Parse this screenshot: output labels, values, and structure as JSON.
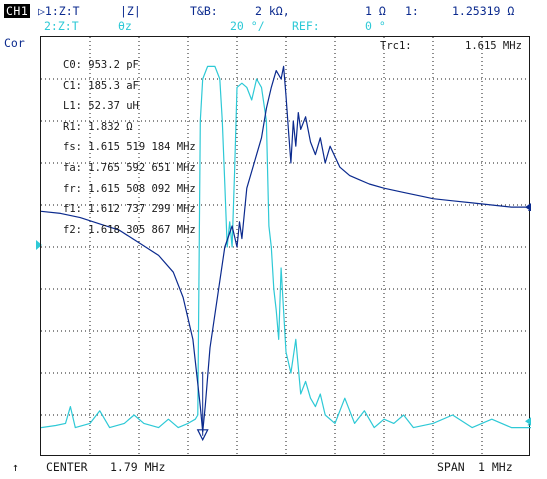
{
  "header": {
    "channel": "CH1",
    "trace1": {
      "label": "▷1:Z:T",
      "format": "|Z|",
      "scale_label": "T&B:",
      "scale_value": "2 kΩ,",
      "ref_value": "1 Ω",
      "marker_label": "1:",
      "marker_value": "1.25319 Ω"
    },
    "trace2": {
      "label": "2:Z:T",
      "format": "θz",
      "scale_value": "20 °/",
      "ref_label": "REF:",
      "ref_value": "0 °"
    }
  },
  "side_label": "Cor",
  "plot": {
    "trace_label": "Trc1:",
    "trace_freq": "1.615 MHz",
    "params": [
      {
        "name": "C0:",
        "value": "953.2 pF"
      },
      {
        "name": "C1:",
        "value": "185.3 aF"
      },
      {
        "name": "L1:",
        "value": "52.37 uH"
      },
      {
        "name": "R1:",
        "value": "1.832 Ω"
      },
      {
        "name": "fs:",
        "value": "1.615 519 184 MHz"
      },
      {
        "name": "fa:",
        "value": "1.765 592 651 MHz"
      },
      {
        "name": "fr:",
        "value": "1.615 508 092 MHz"
      },
      {
        "name": "f1:",
        "value": "1.612 737 299 MHz"
      },
      {
        "name": "f2:",
        "value": "1.618 305 867 MHz"
      }
    ],
    "ref_marker_1": "1",
    "ref_marker_2": "2"
  },
  "footer": {
    "marker_arrow": "↑",
    "center_label": "CENTER",
    "center_value": "1.79 MHz",
    "span_label": "SPAN",
    "span_value": "1 MHz"
  },
  "colors": {
    "trace1": "#0b2a8e",
    "trace2": "#2ec9d6",
    "grid": "#1a1a1a"
  },
  "chart_data": {
    "type": "line",
    "x_center": "1.79 MHz",
    "x_span": "1 MHz",
    "grid": true,
    "series": [
      {
        "name": "|Z|",
        "color": "#0b2a8e",
        "points": [
          [
            0.0,
            0.415
          ],
          [
            0.04,
            0.42
          ],
          [
            0.08,
            0.43
          ],
          [
            0.12,
            0.445
          ],
          [
            0.16,
            0.46
          ],
          [
            0.2,
            0.49
          ],
          [
            0.24,
            0.52
          ],
          [
            0.27,
            0.56
          ],
          [
            0.29,
            0.62
          ],
          [
            0.31,
            0.72
          ],
          [
            0.325,
            0.88
          ],
          [
            0.33,
            0.94
          ],
          [
            0.335,
            0.88
          ],
          [
            0.345,
            0.74
          ],
          [
            0.36,
            0.62
          ],
          [
            0.375,
            0.5
          ],
          [
            0.39,
            0.45
          ],
          [
            0.4,
            0.5
          ],
          [
            0.405,
            0.44
          ],
          [
            0.41,
            0.48
          ],
          [
            0.42,
            0.36
          ],
          [
            0.44,
            0.28
          ],
          [
            0.45,
            0.24
          ],
          [
            0.46,
            0.17
          ],
          [
            0.47,
            0.12
          ],
          [
            0.48,
            0.08
          ],
          [
            0.49,
            0.1
          ],
          [
            0.495,
            0.07
          ],
          [
            0.5,
            0.14
          ],
          [
            0.505,
            0.22
          ],
          [
            0.51,
            0.3
          ],
          [
            0.515,
            0.2
          ],
          [
            0.52,
            0.26
          ],
          [
            0.525,
            0.18
          ],
          [
            0.53,
            0.22
          ],
          [
            0.54,
            0.19
          ],
          [
            0.55,
            0.25
          ],
          [
            0.56,
            0.28
          ],
          [
            0.57,
            0.24
          ],
          [
            0.58,
            0.3
          ],
          [
            0.59,
            0.26
          ],
          [
            0.61,
            0.31
          ],
          [
            0.63,
            0.33
          ],
          [
            0.65,
            0.34
          ],
          [
            0.67,
            0.35
          ],
          [
            0.7,
            0.36
          ],
          [
            0.74,
            0.37
          ],
          [
            0.78,
            0.38
          ],
          [
            0.8,
            0.385
          ],
          [
            0.84,
            0.39
          ],
          [
            0.88,
            0.395
          ],
          [
            0.92,
            0.4
          ],
          [
            0.96,
            0.405
          ],
          [
            1.0,
            0.405
          ]
        ]
      },
      {
        "name": "θz",
        "color": "#2ec9d6",
        "points": [
          [
            0.0,
            0.93
          ],
          [
            0.03,
            0.925
          ],
          [
            0.05,
            0.92
          ],
          [
            0.06,
            0.88
          ],
          [
            0.07,
            0.93
          ],
          [
            0.1,
            0.92
          ],
          [
            0.12,
            0.89
          ],
          [
            0.14,
            0.93
          ],
          [
            0.17,
            0.92
          ],
          [
            0.19,
            0.9
          ],
          [
            0.21,
            0.92
          ],
          [
            0.24,
            0.93
          ],
          [
            0.26,
            0.91
          ],
          [
            0.28,
            0.93
          ],
          [
            0.3,
            0.92
          ],
          [
            0.315,
            0.91
          ],
          [
            0.32,
            0.9
          ],
          [
            0.325,
            0.2
          ],
          [
            0.33,
            0.1
          ],
          [
            0.34,
            0.07
          ],
          [
            0.355,
            0.07
          ],
          [
            0.365,
            0.1
          ],
          [
            0.37,
            0.2
          ],
          [
            0.375,
            0.35
          ],
          [
            0.38,
            0.5
          ],
          [
            0.385,
            0.44
          ],
          [
            0.39,
            0.5
          ],
          [
            0.395,
            0.32
          ],
          [
            0.4,
            0.12
          ],
          [
            0.41,
            0.11
          ],
          [
            0.42,
            0.12
          ],
          [
            0.43,
            0.15
          ],
          [
            0.44,
            0.1
          ],
          [
            0.45,
            0.12
          ],
          [
            0.46,
            0.2
          ],
          [
            0.465,
            0.45
          ],
          [
            0.47,
            0.5
          ],
          [
            0.475,
            0.6
          ],
          [
            0.48,
            0.65
          ],
          [
            0.485,
            0.72
          ],
          [
            0.49,
            0.55
          ],
          [
            0.5,
            0.75
          ],
          [
            0.51,
            0.8
          ],
          [
            0.52,
            0.72
          ],
          [
            0.53,
            0.85
          ],
          [
            0.54,
            0.82
          ],
          [
            0.55,
            0.86
          ],
          [
            0.56,
            0.88
          ],
          [
            0.57,
            0.85
          ],
          [
            0.58,
            0.9
          ],
          [
            0.6,
            0.92
          ],
          [
            0.62,
            0.86
          ],
          [
            0.64,
            0.92
          ],
          [
            0.66,
            0.89
          ],
          [
            0.68,
            0.93
          ],
          [
            0.7,
            0.91
          ],
          [
            0.72,
            0.92
          ],
          [
            0.74,
            0.9
          ],
          [
            0.76,
            0.93
          ],
          [
            0.8,
            0.92
          ],
          [
            0.84,
            0.9
          ],
          [
            0.88,
            0.93
          ],
          [
            0.92,
            0.91
          ],
          [
            0.96,
            0.93
          ],
          [
            1.0,
            0.93
          ]
        ]
      }
    ]
  }
}
